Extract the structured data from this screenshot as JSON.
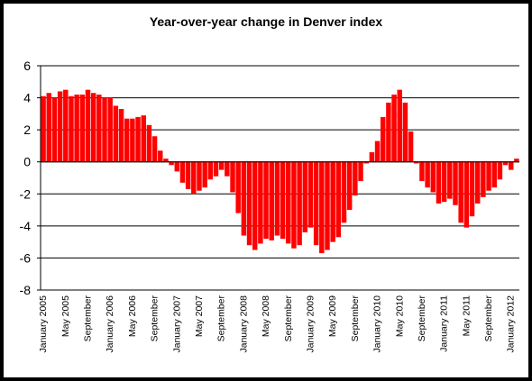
{
  "chart_data": {
    "type": "bar",
    "title": "Year-over-year change in Denver index",
    "xlabel": "",
    "ylabel": "",
    "ylim": [
      -8,
      6
    ],
    "yticks": [
      -8,
      -6,
      -4,
      -2,
      0,
      2,
      4,
      6
    ],
    "grid": "horizontal",
    "bar_color": "#ff0000",
    "x_tick_labels": [
      "January 2005",
      "May 2005",
      "September",
      "January 2006",
      "May 2006",
      "September",
      "January 2007",
      "May 2007",
      "September",
      "January 2008",
      "May 2008",
      "September",
      "January 2009",
      "May 2009",
      "September",
      "January 2010",
      "May 2010",
      "September",
      "January 2011",
      "May 2011",
      "September",
      "January 2012"
    ],
    "values": [
      4.1,
      4.3,
      4.0,
      4.4,
      4.5,
      4.1,
      4.2,
      4.2,
      4.5,
      4.3,
      4.2,
      4.0,
      4.0,
      3.5,
      3.3,
      2.7,
      2.7,
      2.8,
      2.9,
      2.3,
      1.6,
      0.7,
      0.2,
      -0.2,
      -0.6,
      -1.3,
      -1.7,
      -2.0,
      -1.8,
      -1.6,
      -1.1,
      -0.9,
      -0.5,
      -0.9,
      -1.9,
      -3.2,
      -4.6,
      -5.2,
      -5.5,
      -5.1,
      -4.8,
      -4.9,
      -4.6,
      -4.8,
      -5.1,
      -5.4,
      -5.2,
      -4.4,
      -4.1,
      -5.2,
      -5.7,
      -5.5,
      -5.0,
      -4.7,
      -3.8,
      -3.0,
      -2.1,
      -1.2,
      -0.1,
      0.6,
      1.3,
      2.8,
      3.7,
      4.2,
      4.5,
      3.7,
      1.9,
      -0.1,
      -1.2,
      -1.6,
      -1.9,
      -2.6,
      -2.5,
      -2.3,
      -2.7,
      -3.8,
      -4.1,
      -3.4,
      -2.6,
      -2.2,
      -1.8,
      -1.6,
      -1.1,
      -0.2,
      -0.5,
      0.2
    ]
  }
}
